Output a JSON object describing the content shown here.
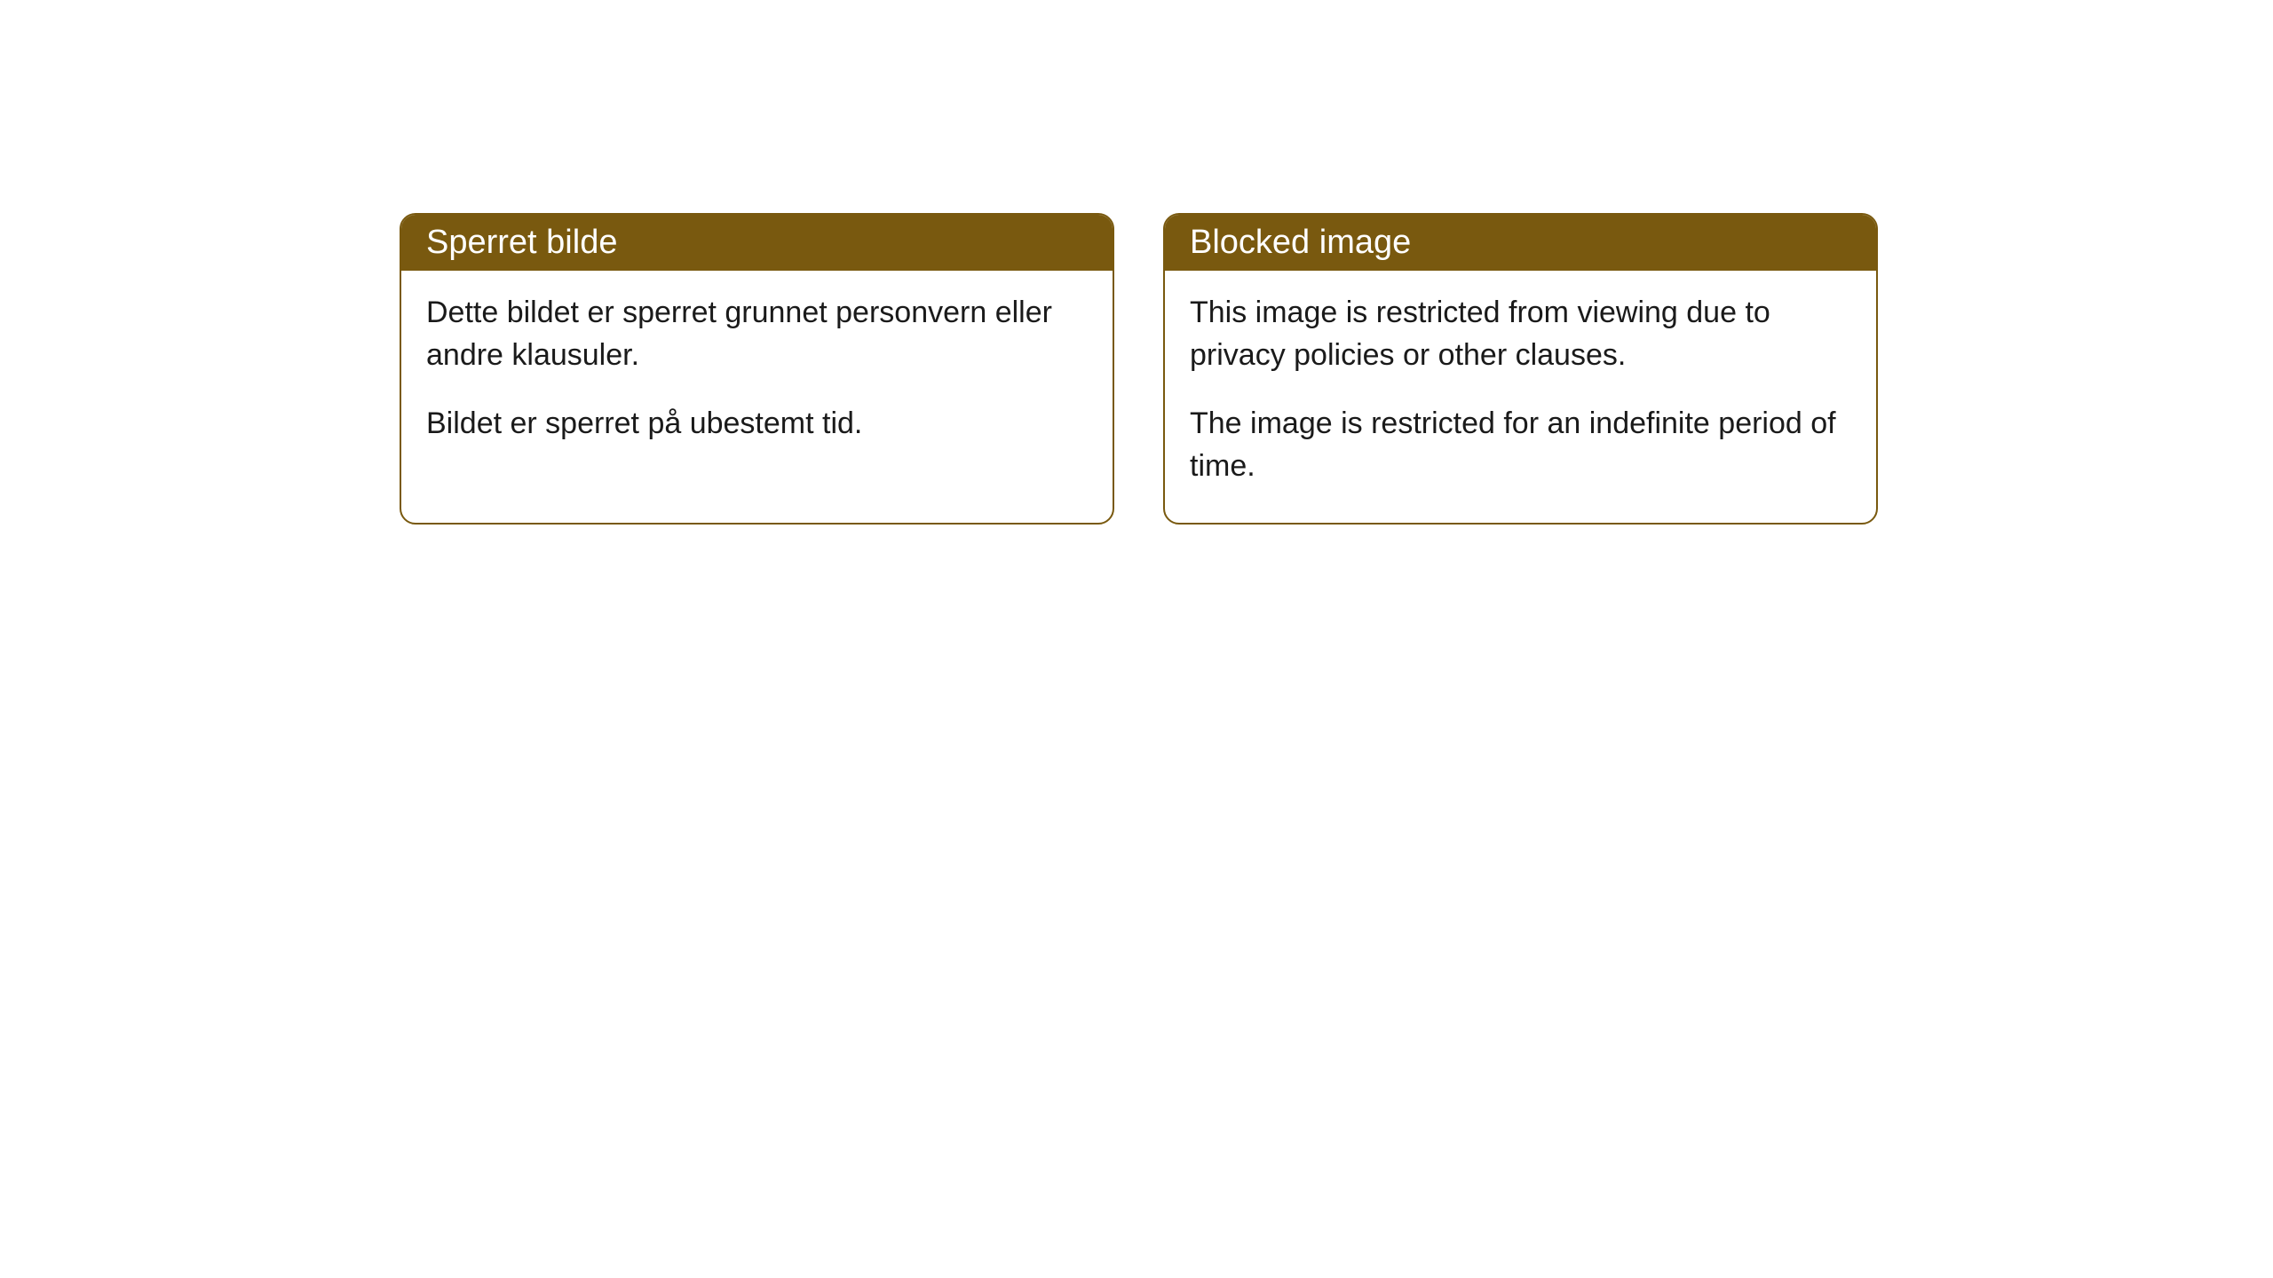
{
  "cards": [
    {
      "title": "Sperret bilde",
      "paragraph1": "Dette bildet er sperret grunnet personvern eller andre klausuler.",
      "paragraph2": "Bildet er sperret på ubestemt tid."
    },
    {
      "title": "Blocked image",
      "paragraph1": "This image is restricted from viewing due to privacy policies or other clauses.",
      "paragraph2": "The image is restricted for an indefinite period of time."
    }
  ],
  "style": {
    "header_bg_color": "#79590f",
    "header_text_color": "#ffffff",
    "border_color": "#79590f",
    "body_bg_color": "#ffffff",
    "body_text_color": "#1a1a1a",
    "border_radius": 18,
    "header_fontsize": 38,
    "body_fontsize": 34
  }
}
